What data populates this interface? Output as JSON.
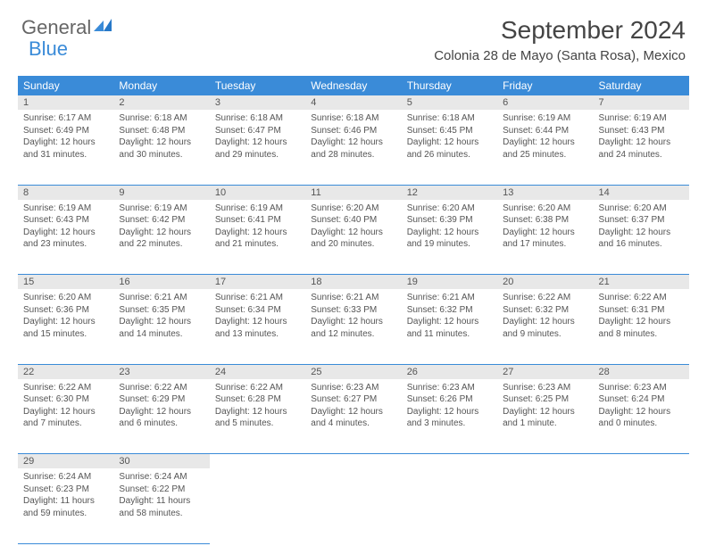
{
  "logo": {
    "part1": "General",
    "part2": "Blue"
  },
  "title": "September 2024",
  "location": "Colonia 28 de Mayo (Santa Rosa), Mexico",
  "colors": {
    "accent": "#3a8bd8",
    "header_bg": "#3a8bd8",
    "daynum_bg": "#e8e8e8"
  },
  "weekdays": [
    "Sunday",
    "Monday",
    "Tuesday",
    "Wednesday",
    "Thursday",
    "Friday",
    "Saturday"
  ],
  "weeks": [
    [
      {
        "n": "1",
        "sr": "Sunrise: 6:17 AM",
        "ss": "Sunset: 6:49 PM",
        "d1": "Daylight: 12 hours",
        "d2": "and 31 minutes."
      },
      {
        "n": "2",
        "sr": "Sunrise: 6:18 AM",
        "ss": "Sunset: 6:48 PM",
        "d1": "Daylight: 12 hours",
        "d2": "and 30 minutes."
      },
      {
        "n": "3",
        "sr": "Sunrise: 6:18 AM",
        "ss": "Sunset: 6:47 PM",
        "d1": "Daylight: 12 hours",
        "d2": "and 29 minutes."
      },
      {
        "n": "4",
        "sr": "Sunrise: 6:18 AM",
        "ss": "Sunset: 6:46 PM",
        "d1": "Daylight: 12 hours",
        "d2": "and 28 minutes."
      },
      {
        "n": "5",
        "sr": "Sunrise: 6:18 AM",
        "ss": "Sunset: 6:45 PM",
        "d1": "Daylight: 12 hours",
        "d2": "and 26 minutes."
      },
      {
        "n": "6",
        "sr": "Sunrise: 6:19 AM",
        "ss": "Sunset: 6:44 PM",
        "d1": "Daylight: 12 hours",
        "d2": "and 25 minutes."
      },
      {
        "n": "7",
        "sr": "Sunrise: 6:19 AM",
        "ss": "Sunset: 6:43 PM",
        "d1": "Daylight: 12 hours",
        "d2": "and 24 minutes."
      }
    ],
    [
      {
        "n": "8",
        "sr": "Sunrise: 6:19 AM",
        "ss": "Sunset: 6:43 PM",
        "d1": "Daylight: 12 hours",
        "d2": "and 23 minutes."
      },
      {
        "n": "9",
        "sr": "Sunrise: 6:19 AM",
        "ss": "Sunset: 6:42 PM",
        "d1": "Daylight: 12 hours",
        "d2": "and 22 minutes."
      },
      {
        "n": "10",
        "sr": "Sunrise: 6:19 AM",
        "ss": "Sunset: 6:41 PM",
        "d1": "Daylight: 12 hours",
        "d2": "and 21 minutes."
      },
      {
        "n": "11",
        "sr": "Sunrise: 6:20 AM",
        "ss": "Sunset: 6:40 PM",
        "d1": "Daylight: 12 hours",
        "d2": "and 20 minutes."
      },
      {
        "n": "12",
        "sr": "Sunrise: 6:20 AM",
        "ss": "Sunset: 6:39 PM",
        "d1": "Daylight: 12 hours",
        "d2": "and 19 minutes."
      },
      {
        "n": "13",
        "sr": "Sunrise: 6:20 AM",
        "ss": "Sunset: 6:38 PM",
        "d1": "Daylight: 12 hours",
        "d2": "and 17 minutes."
      },
      {
        "n": "14",
        "sr": "Sunrise: 6:20 AM",
        "ss": "Sunset: 6:37 PM",
        "d1": "Daylight: 12 hours",
        "d2": "and 16 minutes."
      }
    ],
    [
      {
        "n": "15",
        "sr": "Sunrise: 6:20 AM",
        "ss": "Sunset: 6:36 PM",
        "d1": "Daylight: 12 hours",
        "d2": "and 15 minutes."
      },
      {
        "n": "16",
        "sr": "Sunrise: 6:21 AM",
        "ss": "Sunset: 6:35 PM",
        "d1": "Daylight: 12 hours",
        "d2": "and 14 minutes."
      },
      {
        "n": "17",
        "sr": "Sunrise: 6:21 AM",
        "ss": "Sunset: 6:34 PM",
        "d1": "Daylight: 12 hours",
        "d2": "and 13 minutes."
      },
      {
        "n": "18",
        "sr": "Sunrise: 6:21 AM",
        "ss": "Sunset: 6:33 PM",
        "d1": "Daylight: 12 hours",
        "d2": "and 12 minutes."
      },
      {
        "n": "19",
        "sr": "Sunrise: 6:21 AM",
        "ss": "Sunset: 6:32 PM",
        "d1": "Daylight: 12 hours",
        "d2": "and 11 minutes."
      },
      {
        "n": "20",
        "sr": "Sunrise: 6:22 AM",
        "ss": "Sunset: 6:32 PM",
        "d1": "Daylight: 12 hours",
        "d2": "and 9 minutes."
      },
      {
        "n": "21",
        "sr": "Sunrise: 6:22 AM",
        "ss": "Sunset: 6:31 PM",
        "d1": "Daylight: 12 hours",
        "d2": "and 8 minutes."
      }
    ],
    [
      {
        "n": "22",
        "sr": "Sunrise: 6:22 AM",
        "ss": "Sunset: 6:30 PM",
        "d1": "Daylight: 12 hours",
        "d2": "and 7 minutes."
      },
      {
        "n": "23",
        "sr": "Sunrise: 6:22 AM",
        "ss": "Sunset: 6:29 PM",
        "d1": "Daylight: 12 hours",
        "d2": "and 6 minutes."
      },
      {
        "n": "24",
        "sr": "Sunrise: 6:22 AM",
        "ss": "Sunset: 6:28 PM",
        "d1": "Daylight: 12 hours",
        "d2": "and 5 minutes."
      },
      {
        "n": "25",
        "sr": "Sunrise: 6:23 AM",
        "ss": "Sunset: 6:27 PM",
        "d1": "Daylight: 12 hours",
        "d2": "and 4 minutes."
      },
      {
        "n": "26",
        "sr": "Sunrise: 6:23 AM",
        "ss": "Sunset: 6:26 PM",
        "d1": "Daylight: 12 hours",
        "d2": "and 3 minutes."
      },
      {
        "n": "27",
        "sr": "Sunrise: 6:23 AM",
        "ss": "Sunset: 6:25 PM",
        "d1": "Daylight: 12 hours",
        "d2": "and 1 minute."
      },
      {
        "n": "28",
        "sr": "Sunrise: 6:23 AM",
        "ss": "Sunset: 6:24 PM",
        "d1": "Daylight: 12 hours",
        "d2": "and 0 minutes."
      }
    ],
    [
      {
        "n": "29",
        "sr": "Sunrise: 6:24 AM",
        "ss": "Sunset: 6:23 PM",
        "d1": "Daylight: 11 hours",
        "d2": "and 59 minutes."
      },
      {
        "n": "30",
        "sr": "Sunrise: 6:24 AM",
        "ss": "Sunset: 6:22 PM",
        "d1": "Daylight: 11 hours",
        "d2": "and 58 minutes."
      },
      null,
      null,
      null,
      null,
      null
    ]
  ]
}
